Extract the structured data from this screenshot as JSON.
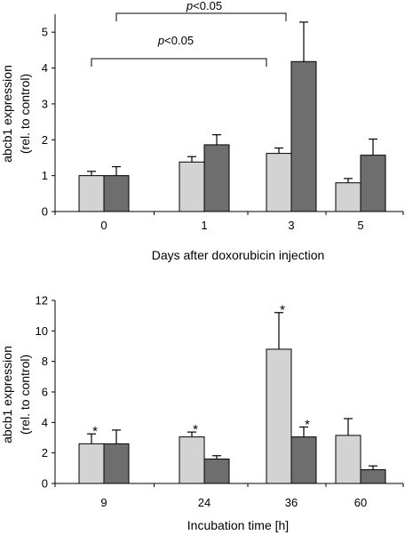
{
  "colors": {
    "light": "#d3d3d3",
    "dark": "#6e6e6e",
    "stroke": "#000000"
  },
  "chart_data": [
    {
      "type": "bar",
      "xlabel": "Days after doxorubicin injection",
      "ylabel": [
        "abcb1 expression",
        "(rel. to control)"
      ],
      "ylim": [
        0,
        5.5
      ],
      "yticks": [
        0,
        1,
        2,
        3,
        4,
        5
      ],
      "categories": [
        "0",
        "1",
        "3",
        "5"
      ],
      "series": [
        {
          "values": [
            1.0,
            1.38,
            1.62,
            0.8
          ],
          "errors": [
            0.12,
            0.15,
            0.15,
            0.12
          ],
          "stars": [
            false,
            false,
            false,
            false
          ]
        },
        {
          "values": [
            1.0,
            1.86,
            4.18,
            1.57
          ],
          "errors": [
            0.25,
            0.28,
            1.1,
            0.45
          ],
          "stars": [
            false,
            false,
            false,
            false
          ]
        }
      ],
      "brackets": [
        {
          "label_prefix": "p",
          "label_suffix": "<0.05"
        },
        {
          "label_prefix": "p",
          "label_suffix": "<0.05"
        }
      ]
    },
    {
      "type": "bar",
      "xlabel": "Incubation time [h]",
      "ylabel": [
        "abcb1 expression",
        "(rel. to control)"
      ],
      "ylim": [
        0,
        12
      ],
      "yticks": [
        0,
        2,
        4,
        6,
        8,
        10,
        12
      ],
      "categories": [
        "9",
        "24",
        "36",
        "60"
      ],
      "series": [
        {
          "values": [
            2.6,
            3.05,
            8.8,
            3.15
          ],
          "errors": [
            0.65,
            0.32,
            2.4,
            1.1
          ],
          "stars": [
            true,
            true,
            true,
            false
          ]
        },
        {
          "values": [
            2.6,
            1.6,
            3.05,
            0.9
          ],
          "errors": [
            0.9,
            0.22,
            0.65,
            0.25
          ],
          "stars": [
            false,
            false,
            true,
            false
          ]
        }
      ],
      "star_label": "*"
    }
  ]
}
